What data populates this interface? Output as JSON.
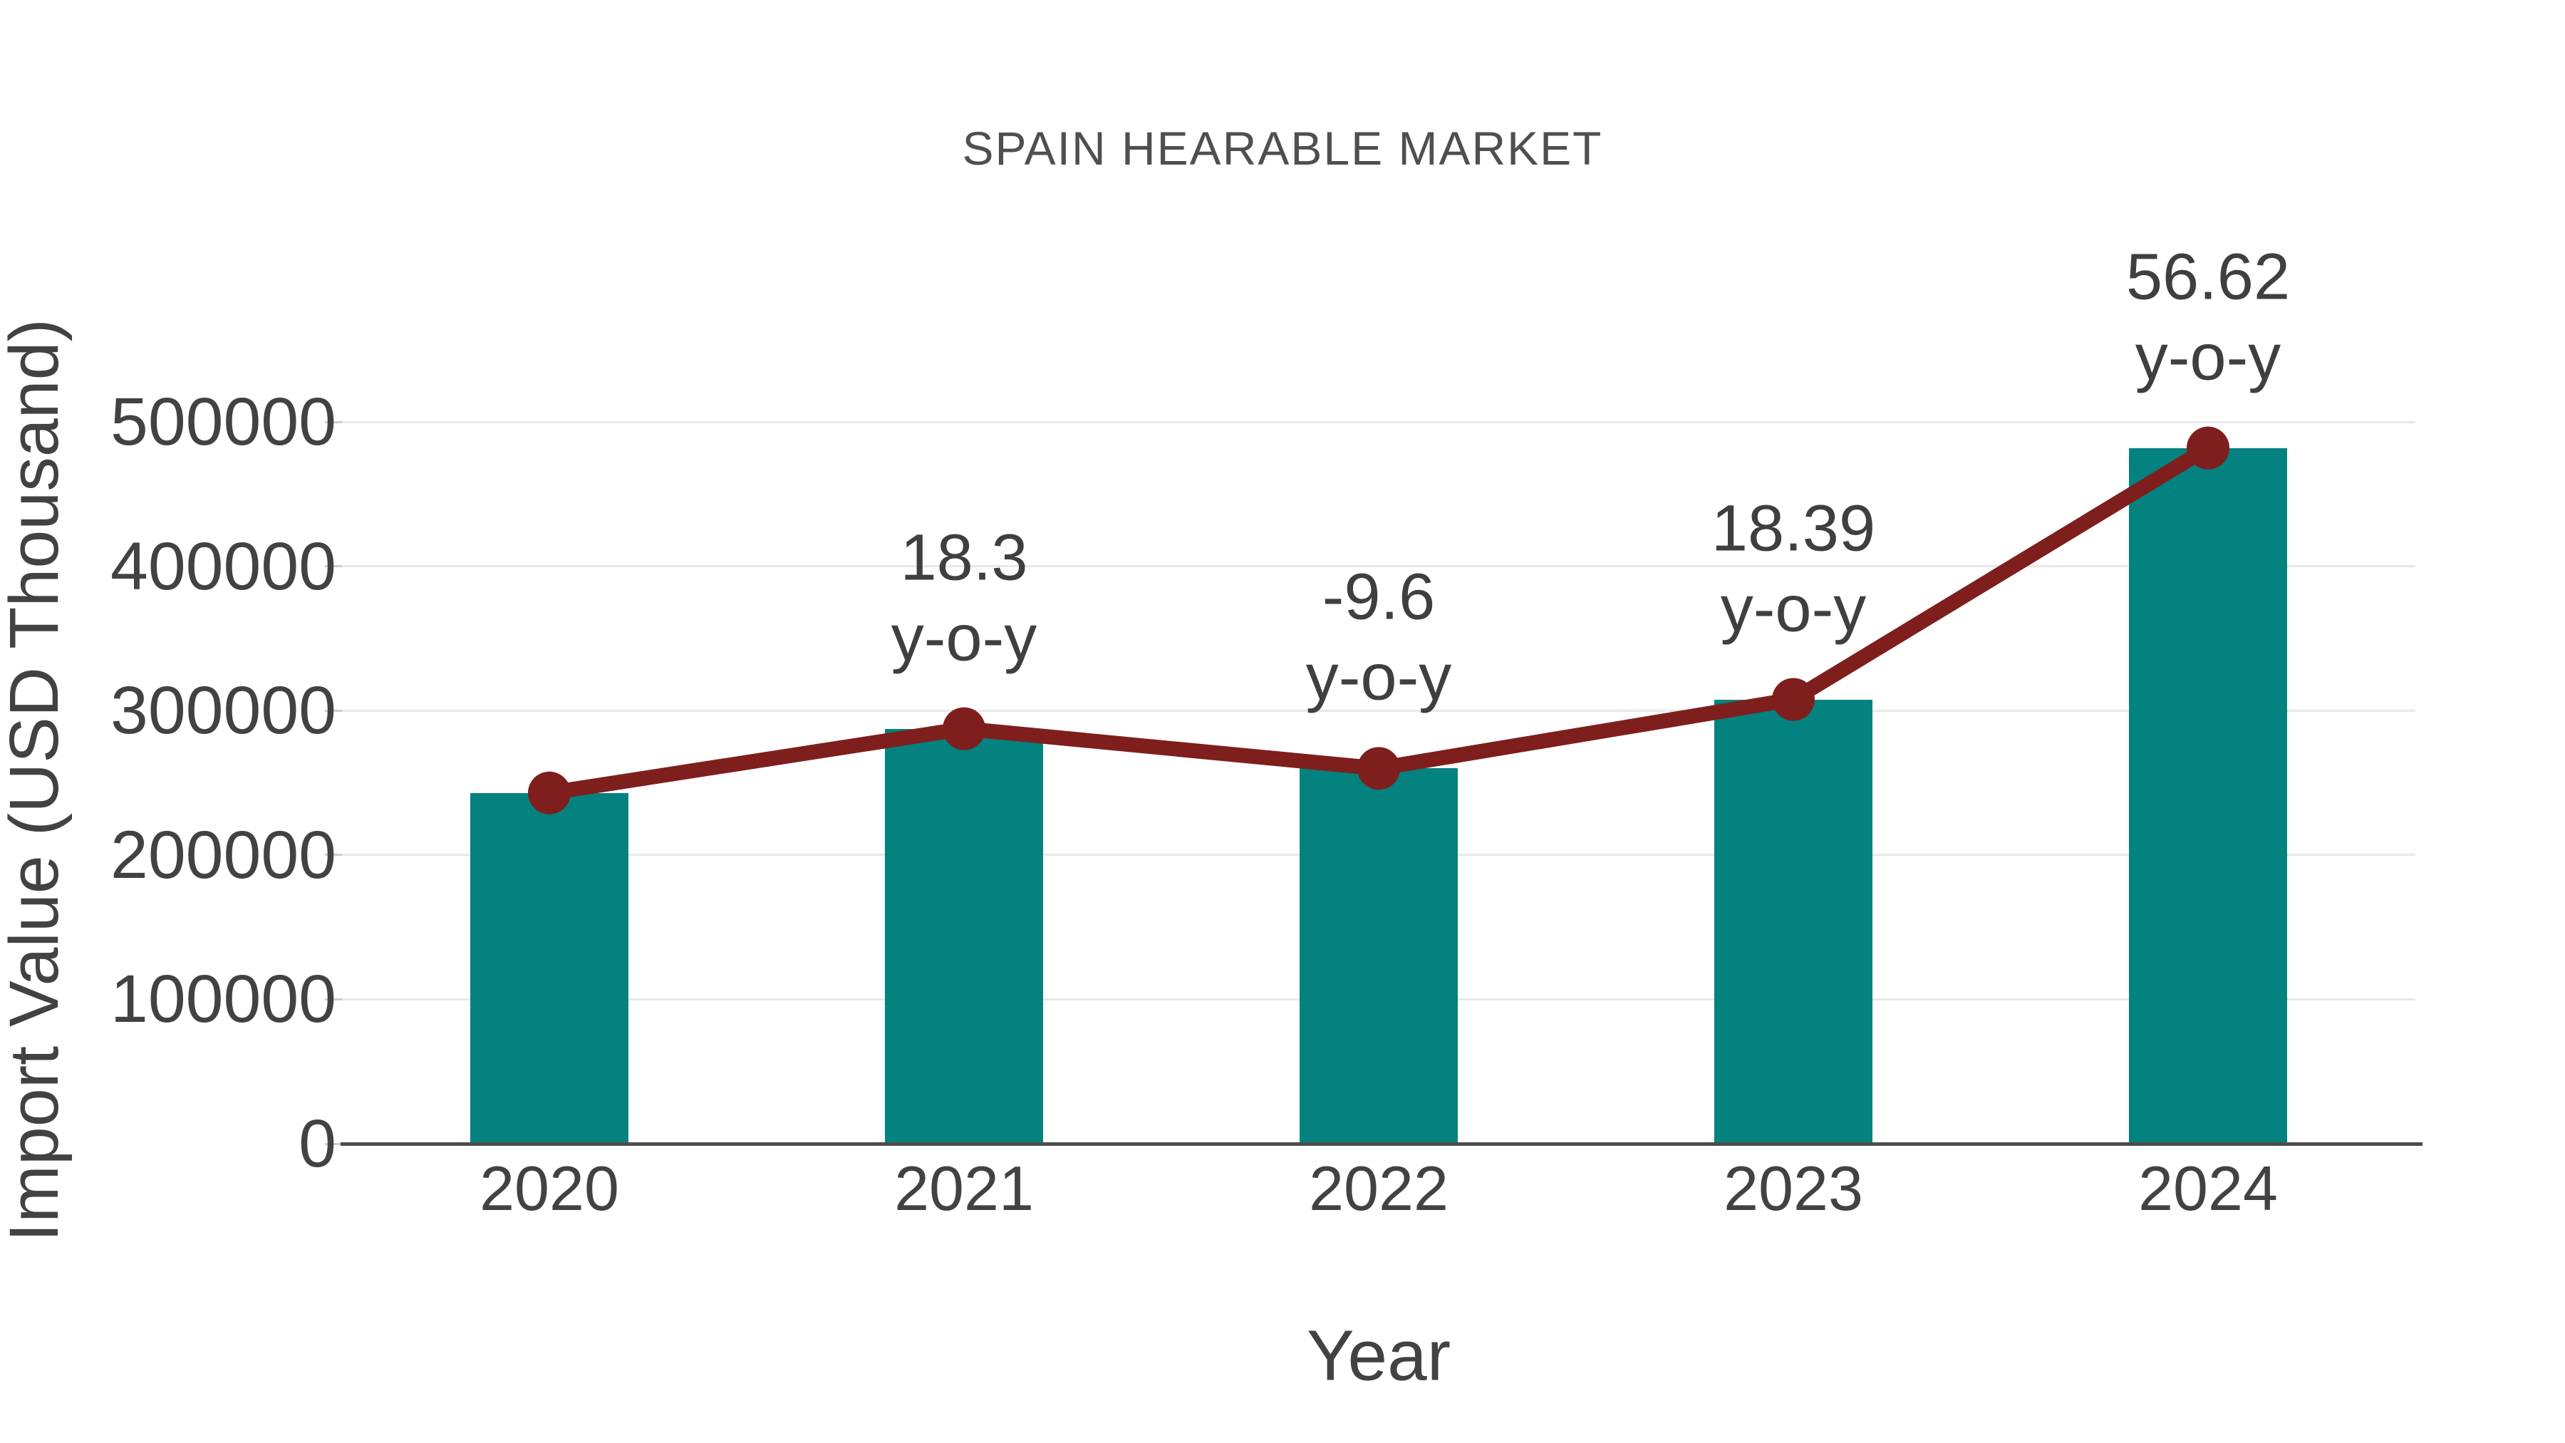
{
  "chart_data": {
    "type": "bar",
    "title": "SPAIN HEARABLE MARKET",
    "xlabel": "Year",
    "ylabel": "Import Value (USD Thousand)",
    "categories": [
      "2020",
      "2021",
      "2022",
      "2023",
      "2024"
    ],
    "series": [
      {
        "name": "Import Value (USD Thousand)",
        "type": "bar",
        "color": "#048280",
        "values": [
          243000,
          287500,
          260000,
          307800,
          482000
        ]
      },
      {
        "name": "Import Value trend",
        "type": "line",
        "color": "#7e1f1d",
        "values": [
          243000,
          287500,
          260000,
          307800,
          482000
        ]
      }
    ],
    "annotations": [
      {
        "category": "2021",
        "value_label": "18.3",
        "unit_label": "y-o-y"
      },
      {
        "category": "2022",
        "value_label": "-9.6",
        "unit_label": "y-o-y"
      },
      {
        "category": "2023",
        "value_label": "18.39",
        "unit_label": "y-o-y"
      },
      {
        "category": "2024",
        "value_label": "56.62",
        "unit_label": "y-o-y"
      }
    ],
    "yticks": [
      0,
      100000,
      200000,
      300000,
      400000,
      500000
    ],
    "ylim": [
      0,
      550000
    ],
    "grid": true,
    "legend_position": "none",
    "colors": {
      "bar": "#048280",
      "line": "#7e1f1d",
      "marker": "#7e1f1d",
      "gridline": "#e8e8e8",
      "axis_line": "#4d4d4d",
      "tick_mark": "#cccccc",
      "text": "#424242",
      "title": "#4f4f4f"
    }
  }
}
